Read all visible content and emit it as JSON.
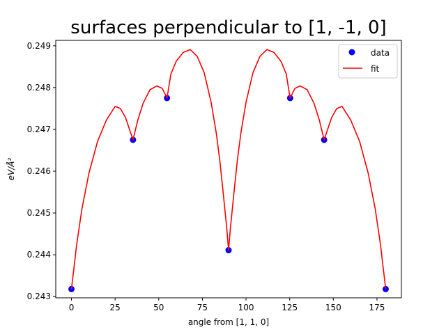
{
  "chart_data": {
    "type": "line",
    "title": "surfaces perpendicular to [1, -1, 0]",
    "xlabel": "angle from [1, 1, 0]",
    "ylabel": "eV/Å²",
    "xlim": [
      -9,
      189
    ],
    "ylim": [
      0.24297,
      0.24913
    ],
    "x_ticks": [
      0,
      25,
      50,
      75,
      100,
      125,
      150,
      175
    ],
    "y_ticks": [
      0.243,
      0.244,
      0.245,
      0.246,
      0.247,
      0.248,
      0.249
    ],
    "legend": {
      "placement": "top-right",
      "entries": [
        "data",
        "fit"
      ]
    },
    "series": [
      {
        "name": "data",
        "kind": "scatter",
        "color": "#0000ff",
        "points": [
          [
            0,
            0.24318
          ],
          [
            35.26,
            0.24675
          ],
          [
            54.74,
            0.24775
          ],
          [
            90,
            0.24411
          ],
          [
            125.26,
            0.24775
          ],
          [
            144.74,
            0.24675
          ],
          [
            180,
            0.24318
          ]
        ]
      },
      {
        "name": "fit",
        "kind": "line",
        "color": "#ff0000",
        "points": [
          [
            0,
            0.24318
          ],
          [
            3,
            0.24425
          ],
          [
            6,
            0.2451
          ],
          [
            10,
            0.24595
          ],
          [
            15,
            0.24672
          ],
          [
            20,
            0.24722
          ],
          [
            25,
            0.24755
          ],
          [
            28,
            0.2475
          ],
          [
            31,
            0.24728
          ],
          [
            35.26,
            0.24675
          ],
          [
            38,
            0.24722
          ],
          [
            41,
            0.24762
          ],
          [
            45,
            0.24795
          ],
          [
            49,
            0.24804
          ],
          [
            52,
            0.24798
          ],
          [
            54.74,
            0.24775
          ],
          [
            57,
            0.24833
          ],
          [
            60,
            0.24863
          ],
          [
            64,
            0.24884
          ],
          [
            68,
            0.24891
          ],
          [
            72,
            0.24875
          ],
          [
            76,
            0.24836
          ],
          [
            80,
            0.24765
          ],
          [
            83,
            0.2469
          ],
          [
            85,
            0.24625
          ],
          [
            87,
            0.24545
          ],
          [
            89,
            0.24462
          ],
          [
            90,
            0.24411
          ],
          [
            91,
            0.24462
          ],
          [
            93,
            0.24545
          ],
          [
            95,
            0.24625
          ],
          [
            97,
            0.2469
          ],
          [
            100,
            0.24765
          ],
          [
            104,
            0.24836
          ],
          [
            108,
            0.24875
          ],
          [
            112,
            0.24891
          ],
          [
            116,
            0.24884
          ],
          [
            120,
            0.24863
          ],
          [
            123,
            0.24833
          ],
          [
            125.26,
            0.24775
          ],
          [
            128,
            0.24798
          ],
          [
            131,
            0.24804
          ],
          [
            135,
            0.24795
          ],
          [
            139,
            0.24762
          ],
          [
            142,
            0.24722
          ],
          [
            144.74,
            0.24675
          ],
          [
            149,
            0.24728
          ],
          [
            152,
            0.2475
          ],
          [
            155,
            0.24755
          ],
          [
            160,
            0.24722
          ],
          [
            165,
            0.24672
          ],
          [
            170,
            0.24595
          ],
          [
            174,
            0.2451
          ],
          [
            177,
            0.24425
          ],
          [
            180,
            0.24318
          ]
        ]
      }
    ]
  }
}
